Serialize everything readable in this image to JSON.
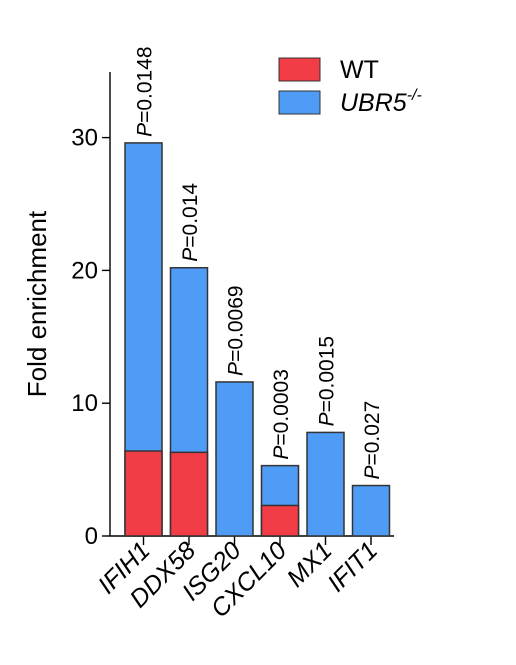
{
  "chart_data": {
    "type": "bar",
    "stacked_overlay": true,
    "title": "",
    "xlabel": "",
    "ylabel": "Fold enrichment",
    "ylim": [
      0,
      35
    ],
    "yticks": [
      0,
      10,
      20,
      30
    ],
    "grid": false,
    "legend_position": "top-right",
    "categories": [
      "IFIH1",
      "DDX58",
      "ISG20",
      "CXCL10",
      "MX1",
      "IFIT1"
    ],
    "series": [
      {
        "name": "WT",
        "color": "#f23c46",
        "values": [
          6.4,
          6.3,
          0,
          2.3,
          0,
          0
        ]
      },
      {
        "name_main": "UBR5",
        "name_sup": "-/-",
        "color": "#4f9cf6",
        "values": [
          29.6,
          20.2,
          11.6,
          5.3,
          7.8,
          3.8
        ]
      }
    ],
    "annotations": [
      {
        "category": "IFIH1",
        "p_prefix": "P",
        "p_rest": "=0.0148"
      },
      {
        "category": "DDX58",
        "p_prefix": "P",
        "p_rest": "=0.014"
      },
      {
        "category": "ISG20",
        "p_prefix": "P",
        "p_rest": "=0.0069"
      },
      {
        "category": "CXCL10",
        "p_prefix": "P",
        "p_rest": "=0.0003"
      },
      {
        "category": "MX1",
        "p_prefix": "P",
        "p_rest": "=0.0015"
      },
      {
        "category": "IFIT1",
        "p_prefix": "P",
        "p_rest": "=0.027"
      }
    ]
  }
}
